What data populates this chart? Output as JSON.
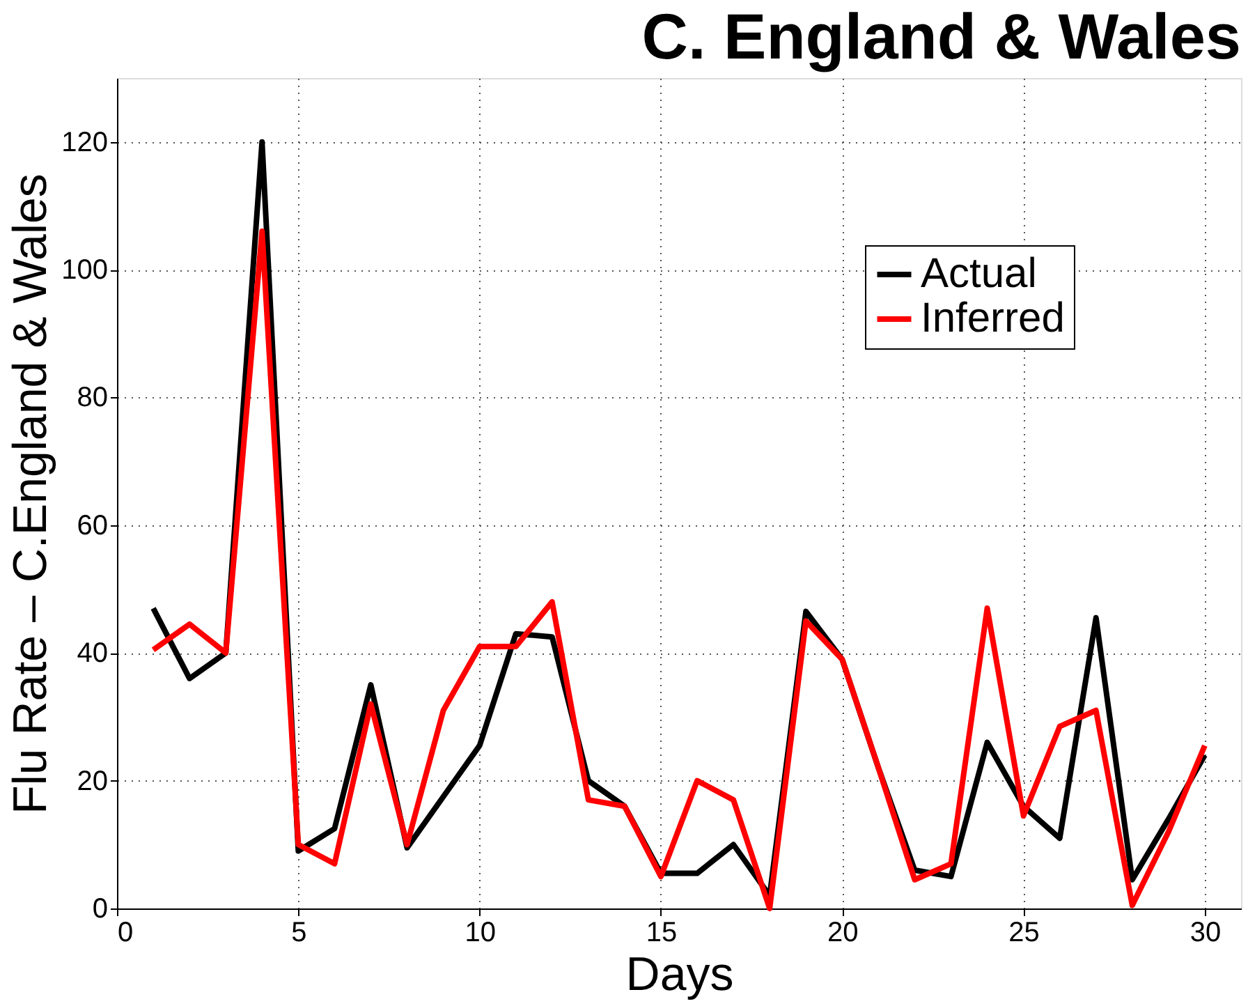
{
  "chart_data": {
    "type": "line",
    "title": "C. England & Wales",
    "xlabel": "Days",
    "ylabel": "Flu Rate – C.England & Wales",
    "x": [
      1,
      2,
      3,
      4,
      5,
      6,
      7,
      8,
      9,
      10,
      11,
      12,
      13,
      14,
      15,
      16,
      17,
      18,
      19,
      20,
      21,
      22,
      23,
      24,
      25,
      26,
      27,
      28,
      29,
      30
    ],
    "series": [
      {
        "name": "Actual",
        "color": "#000000",
        "values": [
          47,
          36,
          40,
          120,
          9,
          12.5,
          35,
          9.5,
          17.5,
          25.5,
          43,
          42.5,
          20,
          16,
          5.5,
          5.5,
          10,
          2,
          46.5,
          39,
          22,
          6,
          5,
          26,
          16,
          11,
          45.5,
          4.5,
          14,
          24
        ]
      },
      {
        "name": "Inferred",
        "color": "#ff0000",
        "values": [
          40.5,
          44.5,
          40,
          106,
          10,
          7,
          32,
          10,
          31,
          41,
          41,
          48,
          17,
          16,
          5,
          20,
          17,
          0,
          45,
          39,
          22,
          4.5,
          7,
          47,
          14.5,
          28.5,
          31,
          0.5,
          12,
          25.5
        ]
      }
    ],
    "xlim": [
      0,
      31
    ],
    "xticks": [
      0,
      5,
      10,
      15,
      20,
      25,
      30
    ],
    "ylim": [
      0,
      130
    ],
    "yticks": [
      0,
      20,
      40,
      60,
      80,
      100,
      120
    ],
    "grid": true,
    "legend": "top right",
    "marker": "none",
    "line_style": "solid"
  }
}
